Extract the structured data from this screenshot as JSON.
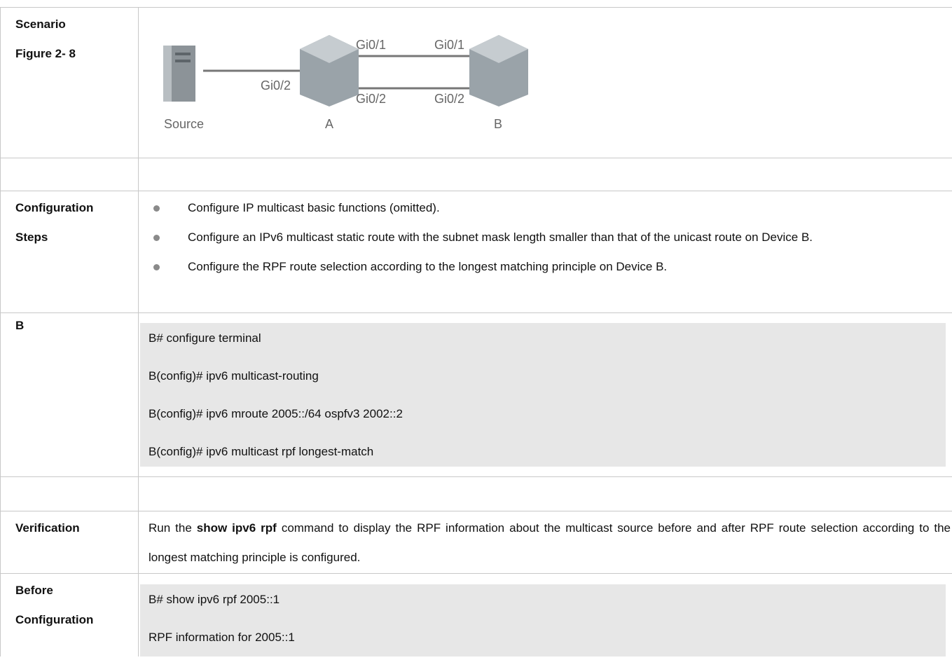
{
  "table": {
    "scenario": {
      "labels": [
        "Scenario",
        "Figure 2- 8"
      ],
      "figure": {
        "devices": [
          "Source",
          "A",
          "B"
        ],
        "ports": [
          "Gi0/2",
          "Gi0/1",
          "Gi0/1",
          "Gi0/2",
          "Gi0/2"
        ]
      }
    },
    "configuration_steps": {
      "labels": [
        "Configuration",
        "Steps"
      ],
      "bullets": [
        "Configure IP multicast basic functions (omitted).",
        "Configure an IPv6 multicast static route with the subnet mask length smaller than that of the unicast route on Device B.",
        "Configure the RPF route selection according to the longest matching principle on Device B."
      ]
    },
    "device_b": {
      "label": "B",
      "code": [
        "B# configure terminal",
        "B(config)# ipv6 multicast-routing",
        "B(config)# ipv6 mroute 2005::/64 ospfv3 2002::2",
        "B(config)# ipv6 multicast rpf longest-match"
      ]
    },
    "verification": {
      "label": "Verification",
      "text": [
        "Run the ",
        "show ipv6 rpf",
        " command to display the RPF information about the multicast source before and after RPF route selection according to the longest matching principle is configured."
      ]
    },
    "before_configuration": {
      "labels": [
        "Before",
        "Configuration"
      ],
      "code": [
        "B# show ipv6 rpf 2005::1",
        "RPF information for 2005::1"
      ]
    }
  }
}
